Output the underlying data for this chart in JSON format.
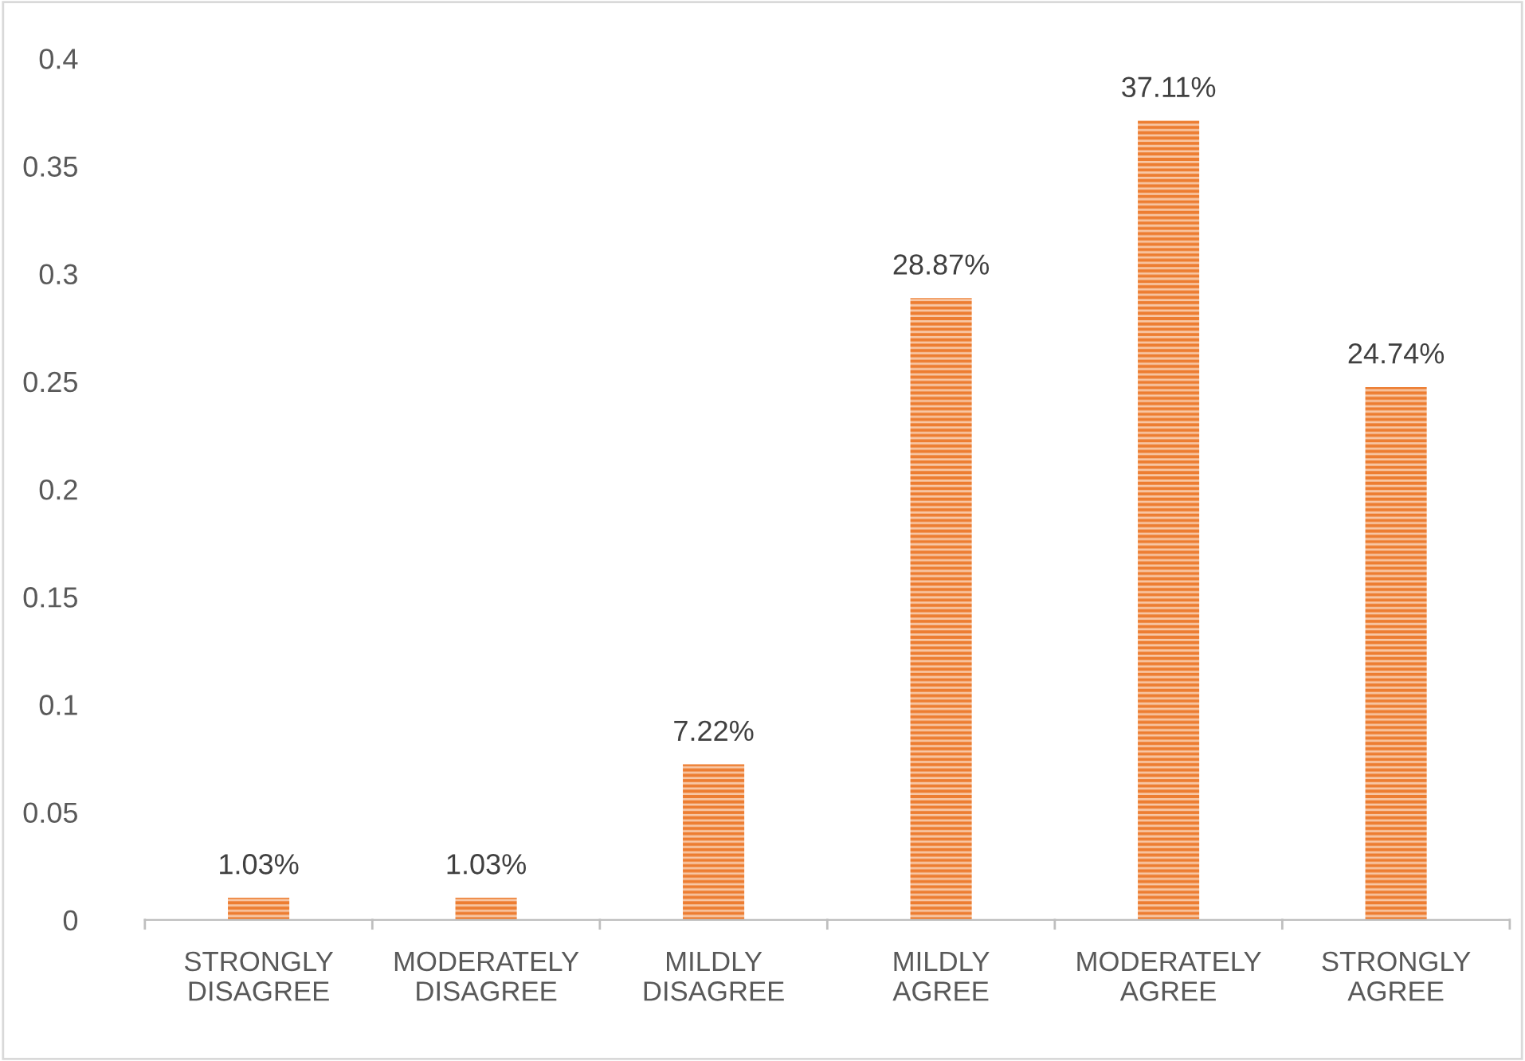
{
  "chart_data": {
    "type": "bar",
    "categories": [
      "STRONGLY\nDISAGREE",
      "MODERATELY\nDISAGREE",
      "MILDLY\nDISAGREE",
      "MILDLY\nAGREE",
      "MODERATELY\nAGREE",
      "STRONGLY\nAGREE"
    ],
    "values": [
      0.0103,
      0.0103,
      0.0722,
      0.2887,
      0.3711,
      0.2474
    ],
    "value_labels": [
      "1.03%",
      "1.03%",
      "7.22%",
      "28.87%",
      "37.11%",
      "24.74%"
    ],
    "color": "#ed7d31",
    "ylim": [
      0,
      0.4
    ],
    "yticks": [
      0,
      0.05,
      0.1,
      0.15,
      0.2,
      0.25,
      0.3,
      0.35,
      0.4
    ],
    "grid": false
  }
}
